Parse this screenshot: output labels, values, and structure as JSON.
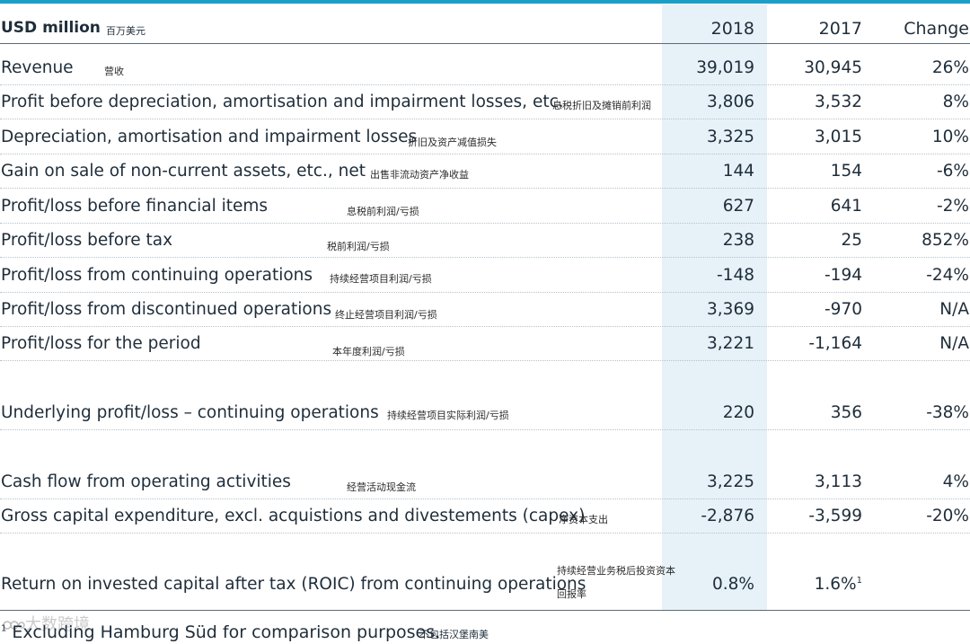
{
  "header": {
    "title": "USD million",
    "title_cn": "百万美元",
    "col_2018": "2018",
    "col_2017": "2017",
    "col_change": "Change"
  },
  "rows": [
    {
      "label": "Revenue",
      "cn": "营收",
      "v2018": "39,019",
      "v2017": "30,945",
      "change": "26%"
    },
    {
      "label": "Profit before depreciation, amortisation and impairment losses, etc.",
      "cn": "息税折旧及摊销前利润",
      "v2018": "3,806",
      "v2017": "3,532",
      "change": "8%"
    },
    {
      "label": "Depreciation, amortisation and impairment losses",
      "cn": "折旧及资产减值损失",
      "v2018": "3,325",
      "v2017": "3,015",
      "change": "10%"
    },
    {
      "label": "Gain on sale of non-current assets, etc., net",
      "cn": "出售非流动资产净收益",
      "v2018": "144",
      "v2017": "154",
      "change": "-6%"
    },
    {
      "label": "Profit/loss before financial items",
      "cn": "息税前利润/亏损",
      "v2018": "627",
      "v2017": "641",
      "change": "-2%"
    },
    {
      "label": "Profit/loss before tax",
      "cn": "税前利润/亏损",
      "v2018": "238",
      "v2017": "25",
      "change": "852%"
    },
    {
      "label": "Profit/loss from continuing operations",
      "cn": "持续经营项目利润/亏损",
      "v2018": "-148",
      "v2017": "-194",
      "change": "-24%"
    },
    {
      "label": "Profit/loss from discontinued operations",
      "cn": "终止经营项目利润/亏损",
      "v2018": "3,369",
      "v2017": "-970",
      "change": "N/A"
    },
    {
      "label": "Profit/loss for the period",
      "cn": "本年度利润/亏损",
      "v2018": "3,221",
      "v2017": "-1,164",
      "change": "N/A"
    },
    {
      "label": "Underlying profit/loss – continuing operations",
      "cn": "持续经营项目实际利润/亏损",
      "v2018": "220",
      "v2017": "356",
      "change": "-38%"
    },
    {
      "label": "Cash flow from operating activities",
      "cn": "经营活动现金流",
      "v2018": "3,225",
      "v2017": "3,113",
      "change": "4%"
    },
    {
      "label": "Gross capital expenditure, excl. acquistions and divestements (capex)",
      "cn": "净资本支出",
      "v2018": "-2,876",
      "v2017": "-3,599",
      "change": "-20%"
    },
    {
      "label": "Return on invested capital after tax (ROIC) from continuing operations",
      "cn_line1": "持续经营业务税后投资资本",
      "cn_line2": "回报率",
      "v2018": "0.8%",
      "v2017": "1.6%",
      "v2017_sup": "1",
      "change": ""
    }
  ],
  "footnote": {
    "marker": "1",
    "text": " Excluding Hamburg Süd for comparison purposes.",
    "cn": "不包括汉堡南美"
  },
  "watermark": "大数跨境"
}
